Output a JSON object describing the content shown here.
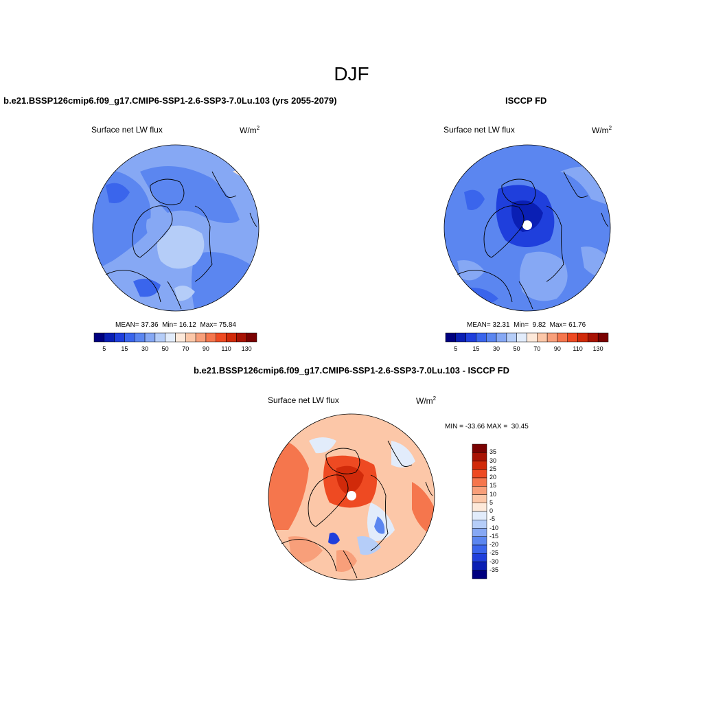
{
  "page": {
    "title": "DJF"
  },
  "panels": {
    "model": {
      "case_title": "b.e21.BSSP126cmip6.f09_g17.CMIP6-SSP1-2.6-SSP3-7.0Lu.103 (yrs 2055-2079)",
      "variable": "Surface net LW flux",
      "units": "W/m",
      "units_sup": "2",
      "stats": {
        "mean_label": "MEAN=",
        "mean": "37.36",
        "min_label": "Min=",
        "min": "16.12",
        "max_label": "Max=",
        "max": "75.84"
      }
    },
    "obs": {
      "case_title": "ISCCP FD",
      "variable": "Surface net LW flux",
      "units": "W/m",
      "units_sup": "2",
      "stats": {
        "mean_label": "MEAN=",
        "mean": "32.31",
        "min_label": "Min=",
        "min": "9.82",
        "max_label": "Max=",
        "max": "61.76"
      }
    },
    "diff": {
      "case_title": "b.e21.BSSP126cmip6.f09_g17.CMIP6-SSP1-2.6-SSP3-7.0Lu.103 - ISCCP FD",
      "variable": "Surface net LW flux",
      "units": "W/m",
      "units_sup": "2",
      "stats": {
        "min_label": "MIN =",
        "min": "-33.66",
        "max_label": "MAX =",
        "max": "30.45"
      }
    }
  },
  "colorbars": {
    "abs": {
      "colors": [
        "#00007f",
        "#0a1fb4",
        "#1f3fdc",
        "#3a65ec",
        "#5b86f0",
        "#86a8f4",
        "#b5cdf8",
        "#e2ecfb",
        "#fde9da",
        "#fcc7a8",
        "#f89f7a",
        "#f5764d",
        "#ee4a22",
        "#d12a0a",
        "#a81304",
        "#7a0202"
      ],
      "tick_labels": [
        "5",
        "15",
        "30",
        "50",
        "70",
        "90",
        "110",
        "130"
      ]
    },
    "diff": {
      "colors": [
        "#00007f",
        "#0a1fb4",
        "#1f3fdc",
        "#3a65ec",
        "#5b86f0",
        "#86a8f4",
        "#b5cdf8",
        "#e2ecfb",
        "#fde9da",
        "#fcc7a8",
        "#f89f7a",
        "#f5764d",
        "#ee4a22",
        "#d12a0a",
        "#a81304",
        "#7a0202"
      ],
      "tick_labels": [
        "35",
        "30",
        "25",
        "20",
        "15",
        "10",
        "5",
        "0",
        "-5",
        "-10",
        "-15",
        "-20",
        "-25",
        "-30",
        "-35"
      ]
    }
  }
}
